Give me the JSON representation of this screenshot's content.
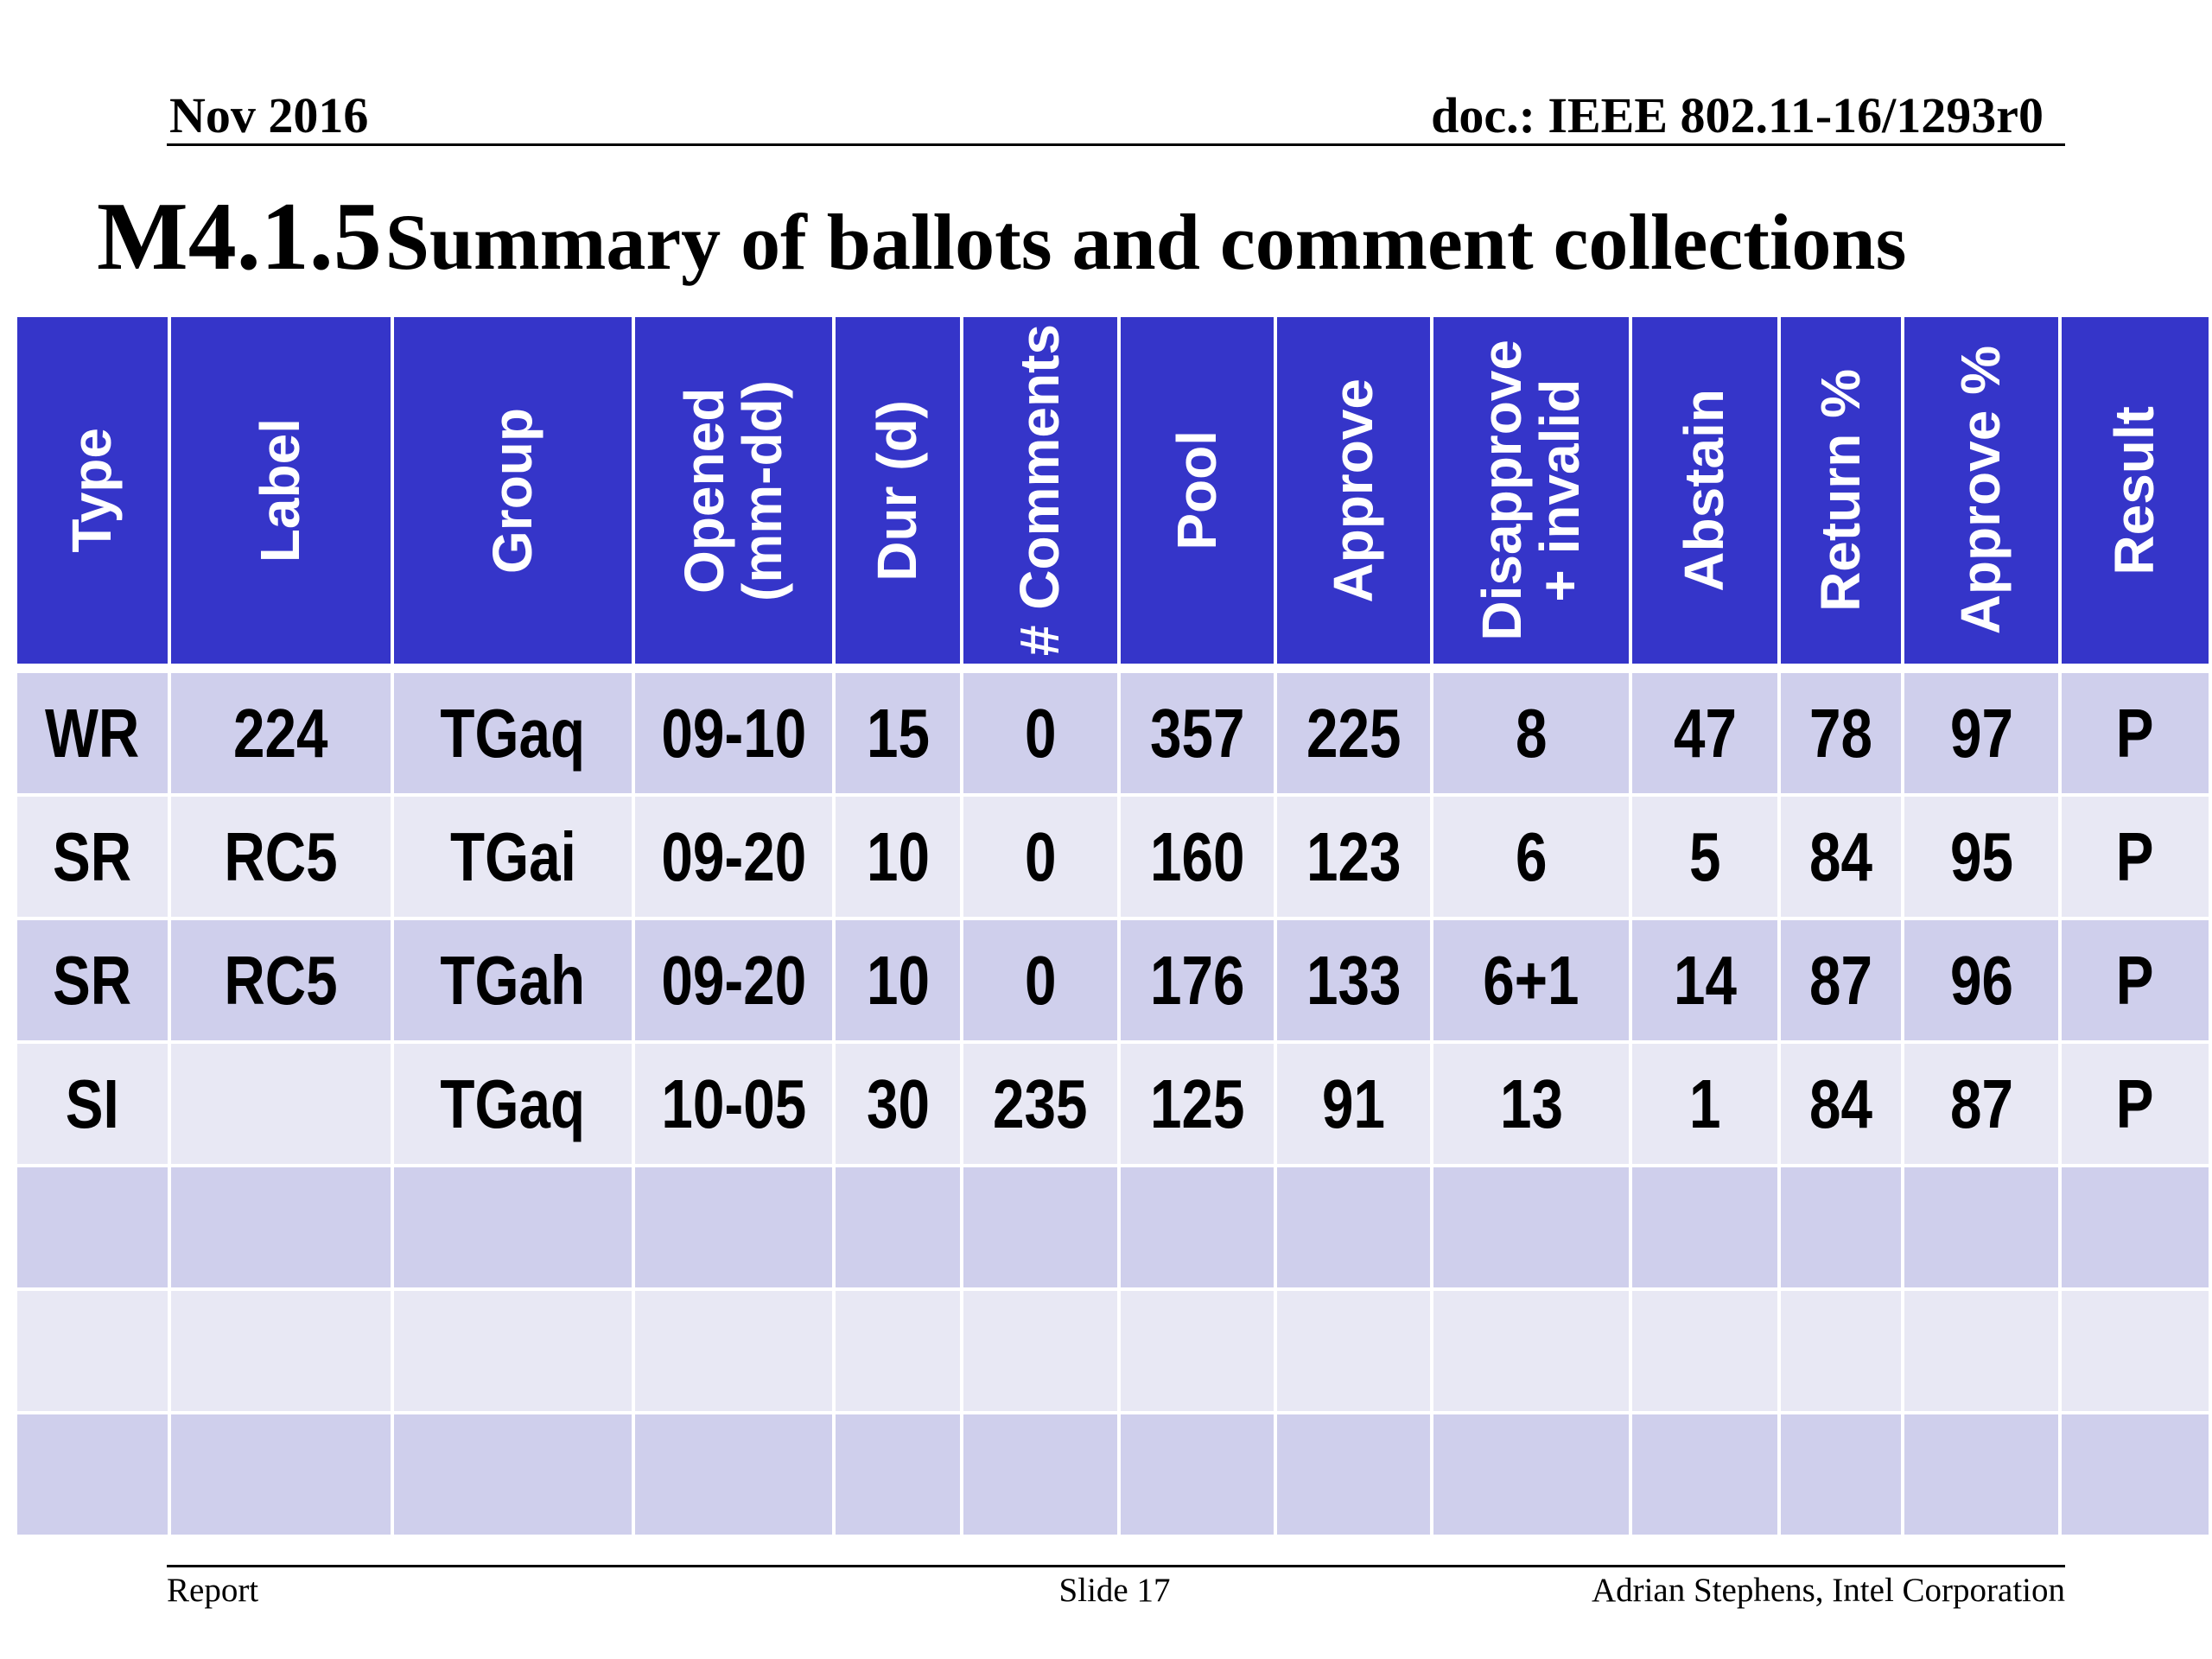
{
  "header": {
    "date": "Nov 2016",
    "doc": "doc.: IEEE 802.11-16/1293r0"
  },
  "title": {
    "prefix": "M4.1.5",
    "text": "Summary of ballots and comment collections"
  },
  "table": {
    "headers": [
      [
        "Type"
      ],
      [
        "Label"
      ],
      [
        "Group"
      ],
      [
        "Opened",
        "(mm-dd)"
      ],
      [
        "Dur (d)"
      ],
      [
        "# Comments"
      ],
      [
        "Pool"
      ],
      [
        "Approve"
      ],
      [
        "Disapprove",
        "+ invalid"
      ],
      [
        "Abstain"
      ],
      [
        "Return %"
      ],
      [
        "Approve %"
      ],
      [
        "Result"
      ]
    ],
    "rows": [
      [
        "WR",
        224,
        "TGaq",
        "09-10",
        15,
        0,
        357,
        225,
        8,
        47,
        78,
        97,
        "P"
      ],
      [
        "SR",
        "RC5",
        "TGai",
        "09-20",
        10,
        0,
        160,
        123,
        6,
        5,
        84,
        95,
        "P"
      ],
      [
        "SR",
        "RC5",
        "TGah",
        "09-20",
        10,
        0,
        176,
        133,
        "6+1",
        14,
        87,
        96,
        "P"
      ],
      [
        "SI",
        null,
        "TGaq",
        "10-05",
        30,
        235,
        125,
        91,
        13,
        1,
        84,
        87,
        "P"
      ]
    ]
  },
  "footer": {
    "left": "Report",
    "center": "Slide 17",
    "right": "Adrian Stephens, Intel Corporation"
  }
}
